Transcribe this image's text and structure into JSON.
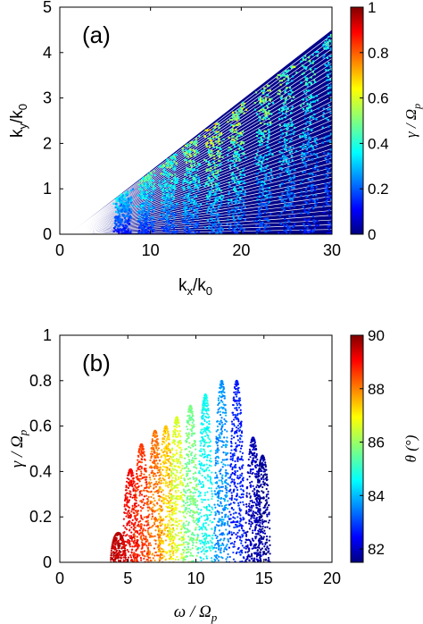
{
  "chart_data": [
    {
      "type": "scatter",
      "panel_label": "(a)",
      "xlabel_main": "k",
      "xlabel_sub": "x",
      "xlabel_mid": "/k",
      "xlabel_sub2": "0",
      "ylabel_main": "k",
      "ylabel_sub": "y",
      "ylabel_mid": "/k",
      "ylabel_sub2": "0",
      "xlim": [
        0,
        30
      ],
      "ylim": [
        0,
        5
      ],
      "xticks": [
        "0",
        "10",
        "20",
        "30"
      ],
      "yticks": [
        "0",
        "1",
        "2",
        "3",
        "4",
        "5"
      ],
      "grid": false,
      "colorbar": {
        "label_main": "γ / Ω",
        "label_sub": "p",
        "range": [
          0,
          1
        ],
        "ticks": [
          "0",
          "0.2",
          "0.4",
          "0.6",
          "0.8",
          "1"
        ],
        "colormap": "jet"
      },
      "series": [
        {
          "description_of_structure": "wedge-shaped region bounded by ky = 0.15*kx, filled by radial lines of constant propagation angle; unstable growth islands near kx ≈ 7, 9.5, 12, 14.5, 17, 19.5, 22.5, 25, 27.5, 30",
          "boundary": {
            "x": [
              1,
              30
            ],
            "y": [
              0,
              4.5
            ]
          },
          "island_centers_kx": [
            7,
            9.5,
            12,
            14.5,
            17,
            19.5,
            22.5,
            25,
            27.5,
            30
          ],
          "island_peak_gamma": [
            0.45,
            0.55,
            0.6,
            0.65,
            0.75,
            0.7,
            0.65,
            0.6,
            0.55,
            0.5
          ]
        }
      ]
    },
    {
      "type": "scatter",
      "panel_label": "(b)",
      "xlabel_main": "ω / Ω",
      "xlabel_sub": "p",
      "ylabel_main": "γ / Ω",
      "ylabel_sub": "p",
      "xlim": [
        0,
        20
      ],
      "ylim": [
        0,
        1
      ],
      "xticks": [
        "0",
        "5",
        "10",
        "15",
        "20"
      ],
      "yticks": [
        "0",
        "0.2",
        "0.4",
        "0.6",
        "0.8",
        "1"
      ],
      "grid": false,
      "colorbar": {
        "label_main": "θ (°)",
        "range": [
          81.5,
          90
        ],
        "ticks": [
          "82",
          "84",
          "86",
          "88",
          "90"
        ],
        "colormap": "jet"
      },
      "series": [
        {
          "clusters": [
            {
              "omega_center": 4.3,
              "gamma_max": 0.13,
              "theta": 89.5
            },
            {
              "omega_center": 5.2,
              "gamma_max": 0.41,
              "theta": 89.0
            },
            {
              "omega_center": 6.0,
              "gamma_max": 0.52,
              "theta": 88.5
            },
            {
              "omega_center": 7.0,
              "gamma_max": 0.58,
              "theta": 88.0
            },
            {
              "omega_center": 7.8,
              "gamma_max": 0.6,
              "theta": 87.3
            },
            {
              "omega_center": 8.6,
              "gamma_max": 0.64,
              "theta": 86.5
            },
            {
              "omega_center": 9.6,
              "gamma_max": 0.69,
              "theta": 85.7
            },
            {
              "omega_center": 10.7,
              "gamma_max": 0.74,
              "theta": 84.8
            },
            {
              "omega_center": 11.9,
              "gamma_max": 0.8,
              "theta": 83.8
            },
            {
              "omega_center": 13.0,
              "gamma_max": 0.8,
              "theta": 82.8
            },
            {
              "omega_center": 14.2,
              "gamma_max": 0.55,
              "theta": 82.0
            },
            {
              "omega_center": 14.9,
              "gamma_max": 0.47,
              "theta": 81.7
            }
          ]
        }
      ]
    }
  ]
}
